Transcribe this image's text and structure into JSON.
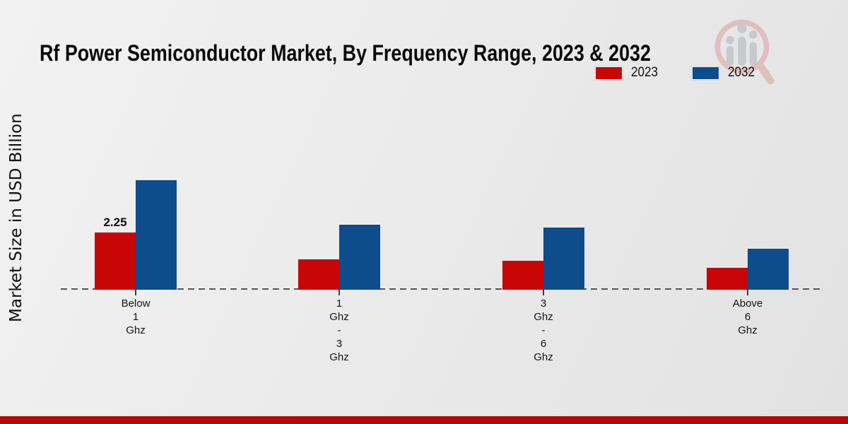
{
  "page": {
    "footer_color": "#b90606",
    "watermark_icon": "magnifier-bar-chart-logo",
    "background_color": "#ebebeb"
  },
  "chart_data": {
    "type": "bar",
    "title": "Rf Power Semiconductor Market, By Frequency Range, 2023 & 2032",
    "xlabel": "",
    "ylabel": "Market Size in USD Billion",
    "categories": [
      "Below 1 Ghz",
      "1 Ghz - 3 Ghz",
      "3 Ghz - 6 Ghz",
      "Above 6 Ghz"
    ],
    "series": [
      {
        "name": "2023",
        "color": "#c80606",
        "values": [
          2.25,
          1.2,
          1.15,
          0.85
        ],
        "data_labels": [
          "2.25",
          "",
          "",
          ""
        ]
      },
      {
        "name": "2032",
        "color": "#0d4d8c",
        "values": [
          4.3,
          2.55,
          2.45,
          1.6
        ],
        "data_labels": [
          "",
          "",
          "",
          ""
        ]
      }
    ],
    "ylim": [
      0,
      4.6
    ],
    "grid": false,
    "y_axis_visible": false,
    "baseline_style": "dashed",
    "legend_position": "top-right"
  }
}
